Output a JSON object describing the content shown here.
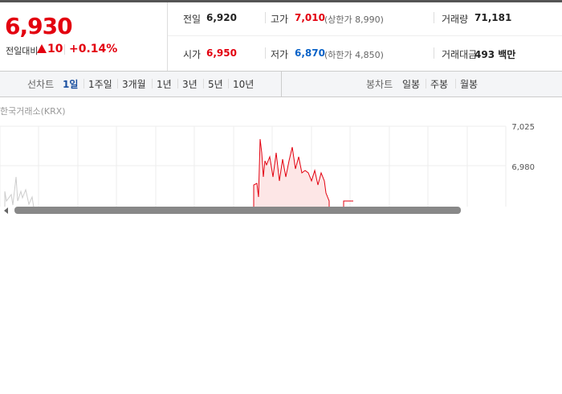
{
  "quote": {
    "price": "6,930",
    "change_label": "전일대비",
    "change": "10",
    "change_pct": "+0.14%"
  },
  "stats": [
    [
      {
        "label": "전일",
        "value": "6,920"
      },
      {
        "label": "고가",
        "value": "7,010",
        "note": "(상한가 8,990)"
      },
      {
        "label": "거래량",
        "value": "71,181"
      }
    ],
    [
      {
        "label": "시가",
        "value": "6,950"
      },
      {
        "label": "저가",
        "value": "6,870",
        "note": "(하한가 4,850)"
      },
      {
        "label": "거래대금",
        "value": "493 백만"
      }
    ]
  ],
  "line_tabs": {
    "label": "선차트",
    "items": [
      "1일",
      "1주일",
      "3개월",
      "1년",
      "3년",
      "5년",
      "10년"
    ]
  },
  "candle_tabs": {
    "label": "봉차트",
    "items": [
      "일봉",
      "주봉",
      "월봉"
    ]
  },
  "source": "한국거래소(KRX)",
  "axis_labels": [
    "7,025",
    "6,980"
  ]
}
